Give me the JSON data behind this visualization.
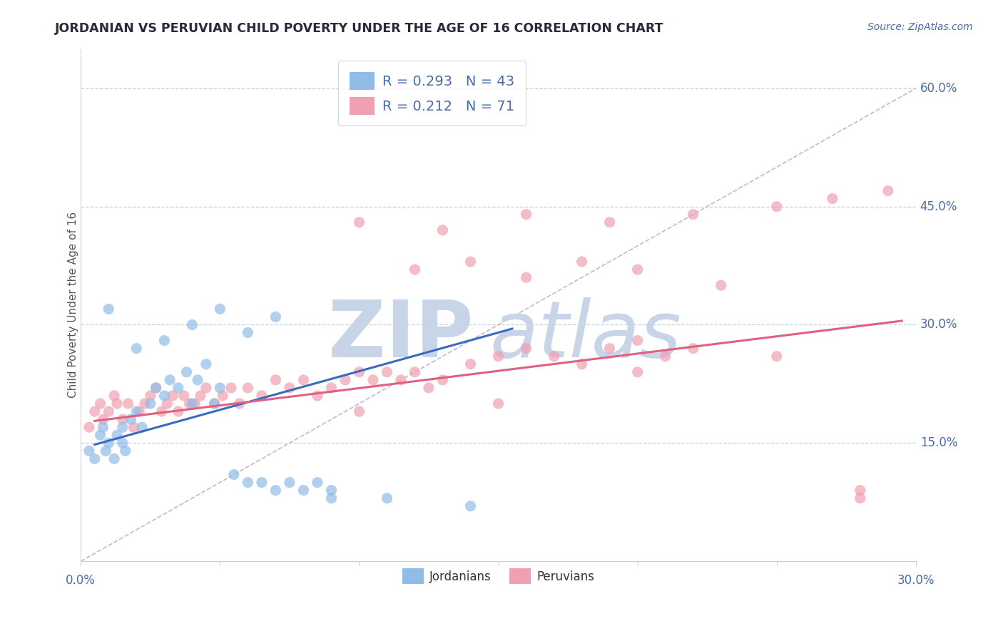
{
  "title": "JORDANIAN VS PERUVIAN CHILD POVERTY UNDER THE AGE OF 16 CORRELATION CHART",
  "source_text": "Source: ZipAtlas.com",
  "ylabel": "Child Poverty Under the Age of 16",
  "xlim": [
    0.0,
    0.3
  ],
  "ylim": [
    0.0,
    0.65
  ],
  "ytick_positions": [
    0.15,
    0.3,
    0.45,
    0.6
  ],
  "ytick_labels": [
    "15.0%",
    "30.0%",
    "45.0%",
    "60.0%"
  ],
  "background_color": "#ffffff",
  "grid_color": "#c8d0dc",
  "title_color": "#2a2a3a",
  "tick_label_color": "#4a6aaa",
  "jordan_color": "#90bce8",
  "jordan_line_color": "#3a6abf",
  "peru_color": "#f0a0b0",
  "peru_line_color": "#e06080",
  "jordan_R": 0.293,
  "jordan_N": 43,
  "peru_R": 0.212,
  "peru_N": 71,
  "watermark_zip": "ZIP",
  "watermark_atlas": "atlas",
  "watermark_color": "#c8d4e8",
  "ref_line_color": "#aaaacc",
  "jordan_line_x": [
    0.005,
    0.155
  ],
  "jordan_line_y": [
    0.148,
    0.295
  ],
  "peru_line_x": [
    0.005,
    0.295
  ],
  "peru_line_y": [
    0.178,
    0.305
  ],
  "jordan_scatter_x": [
    0.003,
    0.005,
    0.007,
    0.008,
    0.009,
    0.01,
    0.012,
    0.013,
    0.015,
    0.015,
    0.016,
    0.018,
    0.02,
    0.022,
    0.025,
    0.027,
    0.03,
    0.032,
    0.035,
    0.038,
    0.04,
    0.042,
    0.045,
    0.048,
    0.05,
    0.055,
    0.06,
    0.065,
    0.07,
    0.075,
    0.08,
    0.085,
    0.09,
    0.01,
    0.02,
    0.03,
    0.04,
    0.05,
    0.06,
    0.07,
    0.09,
    0.11,
    0.14
  ],
  "jordan_scatter_y": [
    0.14,
    0.13,
    0.16,
    0.17,
    0.14,
    0.15,
    0.13,
    0.16,
    0.17,
    0.15,
    0.14,
    0.18,
    0.19,
    0.17,
    0.2,
    0.22,
    0.21,
    0.23,
    0.22,
    0.24,
    0.2,
    0.23,
    0.25,
    0.2,
    0.22,
    0.11,
    0.1,
    0.1,
    0.09,
    0.1,
    0.09,
    0.1,
    0.09,
    0.32,
    0.27,
    0.28,
    0.3,
    0.32,
    0.29,
    0.31,
    0.08,
    0.08,
    0.07
  ],
  "peru_scatter_x": [
    0.003,
    0.005,
    0.007,
    0.008,
    0.01,
    0.012,
    0.013,
    0.015,
    0.017,
    0.019,
    0.021,
    0.023,
    0.025,
    0.027,
    0.029,
    0.031,
    0.033,
    0.035,
    0.037,
    0.039,
    0.041,
    0.043,
    0.045,
    0.048,
    0.051,
    0.054,
    0.057,
    0.06,
    0.065,
    0.07,
    0.075,
    0.08,
    0.085,
    0.09,
    0.095,
    0.1,
    0.105,
    0.11,
    0.115,
    0.12,
    0.125,
    0.13,
    0.14,
    0.15,
    0.16,
    0.17,
    0.18,
    0.19,
    0.2,
    0.21,
    0.22,
    0.12,
    0.14,
    0.16,
    0.18,
    0.2,
    0.23,
    0.1,
    0.13,
    0.16,
    0.19,
    0.22,
    0.25,
    0.27,
    0.29,
    0.1,
    0.15,
    0.2,
    0.25,
    0.28,
    0.28
  ],
  "peru_scatter_y": [
    0.17,
    0.19,
    0.2,
    0.18,
    0.19,
    0.21,
    0.2,
    0.18,
    0.2,
    0.17,
    0.19,
    0.2,
    0.21,
    0.22,
    0.19,
    0.2,
    0.21,
    0.19,
    0.21,
    0.2,
    0.2,
    0.21,
    0.22,
    0.2,
    0.21,
    0.22,
    0.2,
    0.22,
    0.21,
    0.23,
    0.22,
    0.23,
    0.21,
    0.22,
    0.23,
    0.24,
    0.23,
    0.24,
    0.23,
    0.24,
    0.22,
    0.23,
    0.25,
    0.26,
    0.27,
    0.26,
    0.25,
    0.27,
    0.28,
    0.26,
    0.27,
    0.37,
    0.38,
    0.36,
    0.38,
    0.37,
    0.35,
    0.43,
    0.42,
    0.44,
    0.43,
    0.44,
    0.45,
    0.46,
    0.47,
    0.19,
    0.2,
    0.24,
    0.26,
    0.09,
    0.08
  ]
}
